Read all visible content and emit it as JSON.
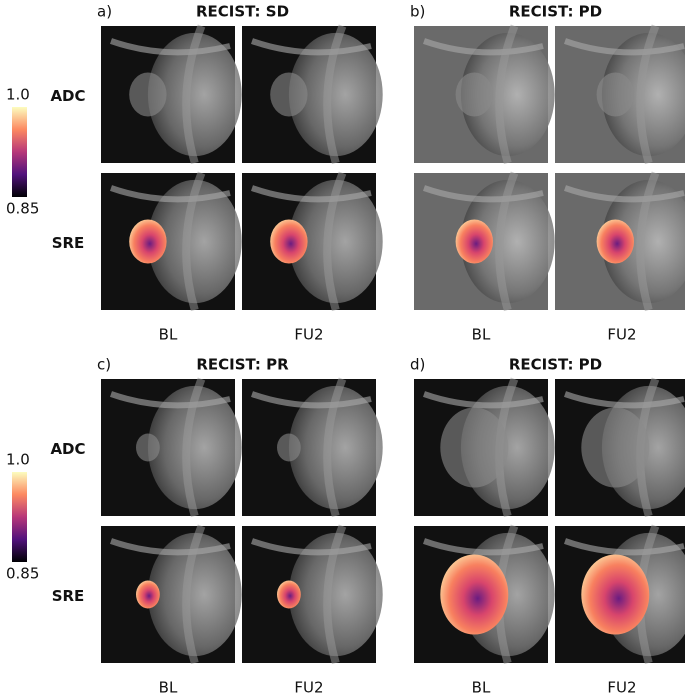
{
  "colorbars": [
    {
      "max": "1.0",
      "min": "0.85"
    },
    {
      "max": "1.0",
      "min": "0.85"
    }
  ],
  "panels": [
    {
      "label": "a)",
      "title": "RECIST: SD",
      "rows": [
        "ADC",
        "SRE"
      ],
      "columns": [
        "BL",
        "FU2"
      ]
    },
    {
      "label": "b)",
      "title": "RECIST: PD",
      "columns": [
        "BL",
        "FU2"
      ]
    },
    {
      "label": "c)",
      "title": "RECIST: PR",
      "rows": [
        "ADC",
        "SRE"
      ],
      "columns": [
        "BL",
        "FU2"
      ]
    },
    {
      "label": "d)",
      "title": "RECIST: PD",
      "columns": [
        "BL",
        "FU2"
      ]
    }
  ]
}
